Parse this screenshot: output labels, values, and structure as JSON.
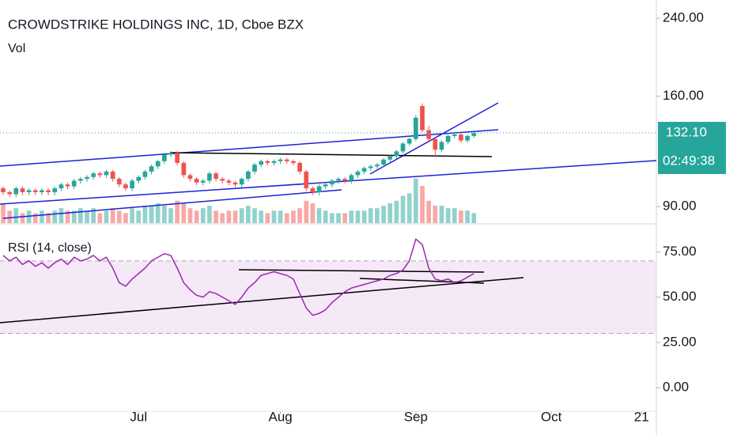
{
  "chart_data": {
    "type": "candlestick",
    "title": "CROWDSTRIKE HOLDINGS INC, 1D, Cboe BZX",
    "up_color": "#26a69a",
    "down_color": "#ef5350",
    "log_scale": true,
    "ylim": [
      82.6,
      264
    ],
    "yticks": [
      {
        "value": 90,
        "label": "90.00"
      },
      {
        "value": 160,
        "label": "160.00"
      },
      {
        "value": 240,
        "label": "240.00"
      }
    ],
    "xlim": [
      -0.49,
      101.3
    ],
    "xticks": [
      {
        "value": 21,
        "label": "Jul"
      },
      {
        "value": 43,
        "label": "Aug"
      },
      {
        "value": 64,
        "label": "Sep"
      },
      {
        "value": 85,
        "label": "Oct"
      },
      {
        "value": 99,
        "label": "21"
      }
    ],
    "x": [
      0,
      1,
      2,
      3,
      4,
      5,
      6,
      7,
      8,
      9,
      10,
      11,
      12,
      13,
      14,
      15,
      16,
      17,
      18,
      19,
      20,
      21,
      22,
      23,
      24,
      25,
      26,
      27,
      28,
      29,
      30,
      31,
      32,
      33,
      34,
      35,
      36,
      37,
      38,
      39,
      40,
      41,
      42,
      43,
      44,
      45,
      46,
      47,
      48,
      49,
      50,
      51,
      52,
      53,
      54,
      55,
      56,
      57,
      58,
      59,
      60,
      61,
      62,
      63,
      64,
      65,
      66,
      67,
      68,
      69,
      70,
      71,
      72,
      73
    ],
    "open": [
      99,
      97,
      96,
      99,
      97,
      98,
      97,
      98,
      97,
      99,
      101,
      100,
      103,
      104,
      105,
      107,
      106,
      108,
      104,
      101,
      99,
      103,
      105,
      108,
      111,
      114,
      118,
      119,
      113,
      106,
      104,
      102,
      103,
      107,
      104,
      103,
      102,
      101,
      104,
      108,
      112,
      114,
      113,
      114,
      115,
      114,
      113,
      108,
      99,
      97,
      100,
      101,
      103,
      104,
      103,
      106,
      108,
      110,
      111,
      112,
      115,
      117,
      120,
      125,
      128,
      152,
      134,
      128,
      121,
      126,
      130,
      131,
      127,
      130
    ],
    "high": [
      100,
      98,
      100,
      100,
      99,
      99,
      99,
      99,
      100,
      102,
      102,
      104,
      105,
      106,
      108,
      108,
      109,
      109,
      105,
      102,
      104,
      106,
      109,
      112,
      115,
      119,
      120,
      120,
      114,
      107,
      105,
      104,
      108,
      108,
      105,
      104,
      103,
      105,
      109,
      113,
      115,
      115,
      115,
      116,
      116,
      115,
      114,
      109,
      100,
      101,
      102,
      104,
      105,
      105,
      107,
      109,
      111,
      112,
      113,
      116,
      118,
      121,
      126,
      129,
      145,
      154,
      137,
      129,
      127,
      131,
      132,
      132,
      131,
      133
    ],
    "low": [
      95.5,
      94.5,
      94.5,
      95.5,
      95.5,
      95.5,
      95.5,
      95.5,
      95.5,
      97.5,
      98.5,
      98.5,
      101.5,
      102.5,
      103.5,
      104.5,
      104.5,
      102.5,
      99.5,
      97.5,
      97.5,
      101.5,
      103.5,
      106.5,
      109.5,
      112.5,
      116.5,
      111.5,
      104.5,
      102.5,
      100.5,
      100.5,
      101.5,
      102.5,
      101.5,
      100.5,
      99.5,
      99.5,
      102.5,
      106.5,
      110.5,
      111.5,
      111.5,
      112.5,
      112.5,
      111.5,
      106.5,
      97.5,
      95.5,
      95.5,
      98.5,
      99.5,
      101.5,
      101.5,
      101.5,
      104.5,
      106.5,
      108.5,
      109.5,
      110.5,
      113.5,
      115.5,
      118.5,
      123.5,
      126.5,
      132.5,
      125.5,
      117,
      119.5,
      124.5,
      128.5,
      125.5,
      125.5,
      128.5
    ],
    "close": [
      97,
      96,
      99,
      97,
      98,
      97,
      98,
      97,
      99,
      101,
      100,
      103,
      104,
      105,
      107,
      106,
      108,
      104,
      101,
      99,
      103,
      105,
      108,
      111,
      114,
      118,
      119,
      113,
      106,
      104,
      102,
      103,
      107,
      104,
      103,
      102,
      101,
      104,
      108,
      112,
      114,
      113,
      114,
      115,
      114,
      113,
      108,
      99,
      97,
      100,
      101,
      103,
      104,
      103,
      106,
      108,
      110,
      111,
      112,
      115,
      117,
      120,
      125,
      128,
      143,
      134,
      128,
      121,
      126,
      130,
      131,
      127,
      130,
      132
    ],
    "last_price": {
      "value": 132.1,
      "label": "132.10"
    },
    "countdown": "02:49:38",
    "volume": {
      "name": "Vol",
      "ylim": [
        0,
        90
      ],
      "values": [
        8,
        5,
        6,
        4,
        5,
        4,
        5,
        4,
        5,
        6,
        5,
        5,
        6,
        5,
        6,
        4,
        5,
        6,
        5,
        4,
        6,
        5,
        7,
        7,
        8,
        7,
        6,
        9,
        8,
        6,
        5,
        6,
        7,
        5,
        4,
        5,
        5,
        6,
        7,
        6,
        5,
        4,
        5,
        5,
        4,
        5,
        6,
        9,
        8,
        6,
        5,
        4,
        4,
        4,
        5,
        5,
        5,
        6,
        6,
        7,
        8,
        9,
        11,
        12,
        18,
        15,
        9,
        7,
        7,
        6,
        6,
        5,
        5,
        4
      ]
    },
    "rsi": {
      "name": "RSI (14, close)",
      "color": "#9c27b0",
      "ylim": [
        -13,
        90
      ],
      "band": [
        30,
        70
      ],
      "yticks": [
        {
          "value": 0,
          "label": "0.00"
        },
        {
          "value": 25,
          "label": "25.00"
        },
        {
          "value": 50,
          "label": "50.00"
        },
        {
          "value": 75,
          "label": "75.00"
        }
      ],
      "values": [
        73,
        70,
        72,
        68,
        70,
        67,
        69,
        66,
        69,
        71,
        68,
        72,
        70,
        71,
        73,
        70,
        72,
        66,
        58,
        56,
        60,
        63,
        66,
        70,
        72,
        74,
        73,
        66,
        58,
        54,
        51,
        50,
        53,
        52,
        50,
        48,
        46,
        50,
        55,
        58,
        62,
        63,
        64,
        63,
        62,
        60,
        52,
        44,
        40,
        41,
        43,
        47,
        50,
        53,
        55,
        56,
        57,
        58,
        59,
        60,
        62,
        63,
        65,
        70,
        82,
        79,
        66,
        60,
        59,
        60,
        58,
        59,
        61,
        63
      ]
    }
  }
}
